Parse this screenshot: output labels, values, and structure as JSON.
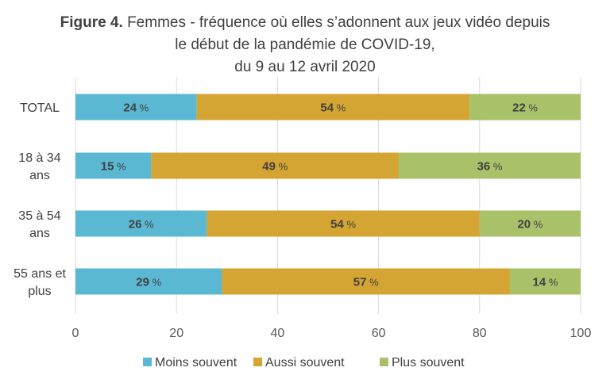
{
  "chart_data": {
    "type": "bar",
    "orientation": "horizontal",
    "stacked": true,
    "title_prefix": "Figure 4.",
    "title_lines": [
      "Femmes - fréquence où elles s’adonnent aux jeux vidéo depuis",
      "le début de la pandémie de COVID-19,",
      "du 9 au 12 avril 2020"
    ],
    "categories": [
      [
        "TOTAL"
      ],
      [
        "18 à 34",
        "ans"
      ],
      [
        "35 à 54",
        "ans"
      ],
      [
        "55 ans et",
        "plus"
      ]
    ],
    "series": [
      {
        "name": "Moins souvent",
        "color": "#5bb8d3",
        "values": [
          24,
          15,
          26,
          29
        ]
      },
      {
        "name": "Aussi souvent",
        "color": "#d4a533",
        "values": [
          54,
          49,
          54,
          57
        ]
      },
      {
        "name": "Plus souvent",
        "color": "#a9c26a",
        "values": [
          22,
          36,
          20,
          14
        ]
      }
    ],
    "value_unit": "%",
    "xlim": [
      0,
      100
    ],
    "xticks": [
      0,
      20,
      40,
      60,
      80,
      100
    ],
    "grid": "vertical",
    "legend_position": "bottom"
  }
}
